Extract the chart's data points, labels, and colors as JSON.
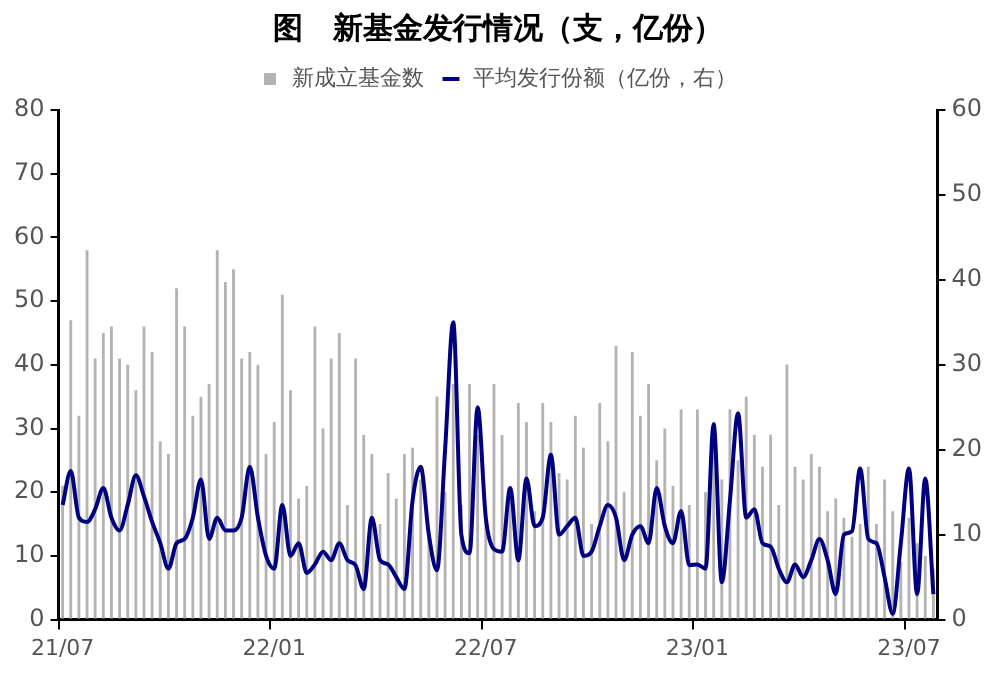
{
  "chart_data": {
    "type": "bar",
    "title": "图　新基金发行情况（支，亿份）",
    "categories": [
      "21/07",
      null,
      null,
      null,
      null,
      null,
      null,
      null,
      null,
      null,
      null,
      null,
      null,
      null,
      null,
      null,
      null,
      null,
      null,
      null,
      null,
      null,
      null,
      null,
      null,
      null,
      "22/01",
      null,
      null,
      null,
      null,
      null,
      null,
      null,
      null,
      null,
      null,
      null,
      null,
      null,
      null,
      null,
      null,
      null,
      null,
      null,
      null,
      null,
      null,
      null,
      null,
      null,
      "22/07",
      null,
      null,
      null,
      null,
      null,
      null,
      null,
      null,
      null,
      null,
      null,
      null,
      null,
      null,
      null,
      null,
      null,
      null,
      null,
      null,
      null,
      null,
      null,
      null,
      null,
      "23/01",
      null,
      null,
      null,
      null,
      null,
      null,
      null,
      null,
      null,
      null,
      null,
      null,
      null,
      null,
      null,
      null,
      null,
      null,
      null,
      null,
      null,
      null,
      null,
      null,
      null,
      "23/07",
      null,
      null,
      null
    ],
    "series": [
      {
        "name": "新成立基金数",
        "color": "#b3b3b3",
        "values": [
          21,
          47,
          32,
          58,
          41,
          45,
          46,
          41,
          40,
          36,
          46,
          42,
          28,
          26,
          52,
          46,
          32,
          35,
          37,
          58,
          53,
          55,
          41,
          42,
          40,
          26,
          31,
          51,
          36,
          19,
          21,
          46,
          30,
          41,
          45,
          18,
          41,
          29,
          26,
          15,
          23,
          19,
          26,
          27,
          22,
          14,
          35,
          20,
          37,
          18,
          37,
          29,
          16,
          37,
          29,
          20,
          34,
          31,
          17,
          34,
          31,
          23,
          22,
          32,
          27,
          15,
          34,
          28,
          43,
          20,
          42,
          32,
          37,
          25,
          30,
          21,
          33,
          18,
          33,
          20,
          31,
          22,
          33,
          25,
          35,
          29,
          24,
          29,
          18,
          40,
          24,
          22,
          26,
          24,
          17,
          19,
          16,
          13,
          15,
          24,
          15,
          22,
          17,
          9,
          16,
          12,
          10,
          8
        ]
      },
      {
        "name": "平均发行份额（亿份，右）",
        "type": "line",
        "axis": "y2",
        "color": "#000080",
        "values": [
          13.5,
          17.5,
          12,
          11.5,
          13,
          15.5,
          12,
          10.5,
          13.5,
          17,
          14.5,
          11.5,
          9,
          6,
          9,
          9.5,
          12,
          16.5,
          9.5,
          12,
          10.5,
          10.5,
          12,
          18,
          12,
          7.5,
          6,
          13.5,
          7.5,
          9,
          5.5,
          6.5,
          8,
          7,
          9,
          7,
          6.4,
          3.6,
          12,
          7,
          6.5,
          5,
          3.6,
          14,
          18,
          10,
          5.8,
          20,
          35,
          10,
          7.8,
          25,
          12,
          8.3,
          8,
          15.5,
          7,
          16.6,
          11,
          12,
          19.4,
          10,
          11,
          12,
          7.5,
          8,
          11,
          13.5,
          12,
          7,
          10,
          11,
          9,
          15.5,
          11,
          9,
          12.8,
          6.4,
          6.5,
          6,
          23,
          4.4,
          14,
          24.3,
          12,
          13,
          9,
          8.6,
          6,
          4.4,
          6.5,
          5,
          7,
          9.5,
          7,
          3,
          10,
          10.4,
          17.8,
          9.5,
          9,
          5,
          0.7,
          9,
          17.8,
          3,
          16.6,
          3
        ]
      }
    ],
    "ylim": [
      0,
      80
    ],
    "yticks": [
      0,
      10,
      20,
      30,
      40,
      50,
      60,
      70,
      80
    ],
    "y2lim": [
      0,
      60
    ],
    "y2ticks": [
      0,
      10,
      20,
      30,
      40,
      50,
      60
    ],
    "grid": false,
    "legend": "top",
    "marker": "none"
  }
}
